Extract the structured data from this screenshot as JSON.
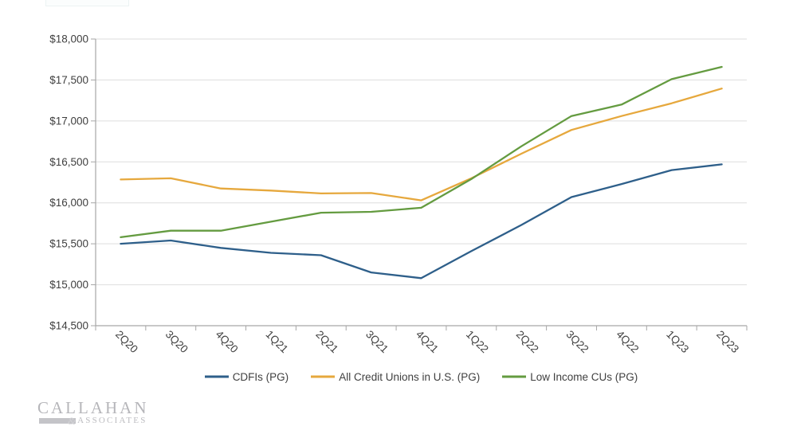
{
  "chart_data": {
    "type": "line",
    "categories": [
      "2Q20",
      "3Q20",
      "4Q20",
      "1Q21",
      "2Q21",
      "3Q21",
      "4Q21",
      "1Q22",
      "2Q22",
      "3Q22",
      "4Q22",
      "1Q23",
      "2Q23"
    ],
    "series": [
      {
        "name": "CDFIs (PG)",
        "color": "#2e5f8a",
        "values": [
          15500,
          15540,
          15450,
          15390,
          15360,
          15150,
          15080,
          15410,
          15730,
          16070,
          16230,
          16400,
          16470
        ]
      },
      {
        "name": "All Credit Unions in U.S. (PG)",
        "color": "#e6a83d",
        "values": [
          16285,
          16300,
          16175,
          16150,
          16115,
          16120,
          16030,
          16300,
          16600,
          16890,
          17060,
          17215,
          17395
        ]
      },
      {
        "name": "Low Income CUs (PG)",
        "color": "#649b40",
        "values": [
          15580,
          15660,
          15660,
          15770,
          15880,
          15890,
          15940,
          16290,
          16690,
          17060,
          17200,
          17510,
          17660
        ]
      }
    ],
    "ylim": [
      14500,
      18000
    ],
    "ytick_step": 500,
    "y_ticks": [
      {
        "label": "$14,500",
        "value": 14500
      },
      {
        "label": "$15,000",
        "value": 15000
      },
      {
        "label": "$15,500",
        "value": 15500
      },
      {
        "label": "$16,000",
        "value": 16000
      },
      {
        "label": "$16,500",
        "value": 16500
      },
      {
        "label": "$17,000",
        "value": 17000
      },
      {
        "label": "$17,500",
        "value": 17500
      },
      {
        "label": "$18,000",
        "value": 18000
      }
    ],
    "grid": true,
    "legend_position": "bottom"
  },
  "colors": {
    "gridline": "#dedede",
    "axis": "#a6a6a6",
    "tick_label": "#404040",
    "legend_text": "#404040"
  },
  "logo": {
    "name": "CALLAHAN",
    "amp": "&",
    "subtitle": "ASSOCIATES"
  }
}
